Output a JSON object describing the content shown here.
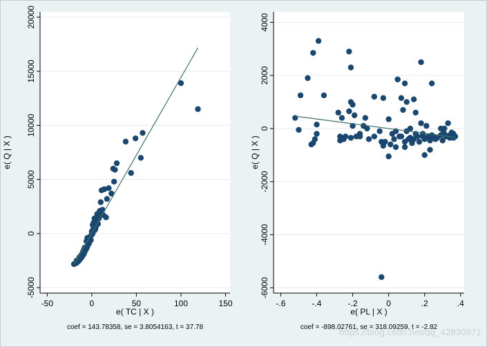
{
  "page": {
    "watermark": "https://blog.csdn.net/qq_42830971"
  },
  "style": {
    "background": "#eaf2f3",
    "plot_background": "#ffffff",
    "point_color": "#1a476f",
    "line_color": "#3d7065",
    "grid_color": "#e6eaec",
    "axis_color": "#000000"
  },
  "chart_data": [
    {
      "type": "scatter",
      "title": "",
      "xlabel": "e( TC | X )",
      "ylabel": "e( Q | X )",
      "xlim": [
        -58,
        155
      ],
      "ylim": [
        -5500,
        20500
      ],
      "xticks": [
        -50,
        0,
        50,
        100,
        150
      ],
      "xtick_labels": [
        "-50",
        "0",
        "50",
        "100",
        "150"
      ],
      "yticks": [
        -5000,
        0,
        5000,
        10000,
        15000,
        20000
      ],
      "ytick_labels": [
        "-5000",
        "0",
        "5000",
        "10000",
        "15000",
        "20000"
      ],
      "grid": true,
      "footnote": "coef = 143.78358, se = 3.8054163, t = 37.78",
      "fit_line": {
        "x": [
          -20,
          119
        ],
        "y": [
          -2820,
          17170
        ]
      },
      "points": [
        [
          119,
          11500
        ],
        [
          100,
          13900
        ],
        [
          57,
          9300
        ],
        [
          55,
          7000
        ],
        [
          49,
          8800
        ],
        [
          44,
          5600
        ],
        [
          38,
          8500
        ],
        [
          28,
          6500
        ],
        [
          26,
          5900
        ],
        [
          24,
          6000
        ],
        [
          25,
          4800
        ],
        [
          22,
          3700
        ],
        [
          19,
          4200
        ],
        [
          17,
          3200
        ],
        [
          14,
          4100
        ],
        [
          11,
          4000
        ],
        [
          10,
          2900
        ],
        [
          9,
          2100
        ],
        [
          12,
          2200
        ],
        [
          16,
          1500
        ],
        [
          7,
          1600
        ],
        [
          5,
          1200
        ],
        [
          4,
          800
        ],
        [
          3,
          1400
        ],
        [
          2,
          500
        ],
        [
          1,
          800
        ],
        [
          0,
          200
        ],
        [
          -1,
          -200
        ],
        [
          -2,
          -500
        ],
        [
          -3,
          -700
        ],
        [
          -4,
          -1000
        ],
        [
          -5,
          -1200
        ],
        [
          -6,
          -1400
        ],
        [
          -7,
          -1500
        ],
        [
          -8,
          -1700
        ],
        [
          -9,
          -1900
        ],
        [
          -10,
          -2000
        ],
        [
          -11,
          -2150
        ],
        [
          -12,
          -2250
        ],
        [
          -13,
          -2350
        ],
        [
          -14,
          -2450
        ],
        [
          -15,
          -2550
        ],
        [
          -16,
          -2620
        ],
        [
          -17,
          -2700
        ],
        [
          -18,
          -2750
        ],
        [
          -19,
          -2790
        ],
        [
          -20,
          -2820
        ],
        [
          -6,
          -700
        ],
        [
          -4,
          -800
        ],
        [
          -2,
          -300
        ],
        [
          0,
          -100
        ],
        [
          3,
          300
        ],
        [
          5,
          700
        ],
        [
          7,
          900
        ],
        [
          8,
          1400
        ],
        [
          -10,
          -1700
        ],
        [
          -12,
          -2000
        ],
        [
          -14,
          -2200
        ],
        [
          -15,
          -2400
        ],
        [
          -17,
          -2500
        ],
        [
          -8,
          -1300
        ],
        [
          -3,
          -900
        ],
        [
          1,
          0
        ],
        [
          4,
          400
        ],
        [
          6,
          1800
        ],
        [
          -5,
          -400
        ],
        [
          -9,
          -1500
        ],
        [
          -11,
          -1900
        ],
        [
          -1,
          -600
        ],
        [
          2,
          1000
        ],
        [
          9,
          1700
        ],
        [
          13,
          1700
        ]
      ]
    },
    {
      "type": "scatter",
      "title": "",
      "xlabel": "e( PL | X )",
      "ylabel": "e( Q | X )",
      "xlim": [
        -0.64,
        0.42
      ],
      "ylim": [
        -6200,
        4400
      ],
      "xticks": [
        -0.6,
        -0.4,
        -0.2,
        0,
        0.2,
        0.4
      ],
      "xtick_labels": [
        "-.6",
        "-.4",
        "-.2",
        "0",
        ".2",
        ".4"
      ],
      "yticks": [
        -6000,
        -4000,
        -2000,
        0,
        2000,
        4000
      ],
      "ytick_labels": [
        "-6000",
        "-4000",
        "-2000",
        "0",
        "2000",
        "4000"
      ],
      "grid": true,
      "footnote": "coef = -898.02761, se = 318.09259, t = -2.82",
      "fit_line": {
        "x": [
          -0.52,
          0.37
        ],
        "y": [
          467,
          -332
        ]
      },
      "points": [
        [
          -0.39,
          3300
        ],
        [
          -0.42,
          2850
        ],
        [
          -0.22,
          2900
        ],
        [
          -0.21,
          2300
        ],
        [
          0.18,
          2500
        ],
        [
          -0.45,
          1900
        ],
        [
          -0.49,
          1250
        ],
        [
          -0.36,
          1250
        ],
        [
          0.05,
          1850
        ],
        [
          0.09,
          1700
        ],
        [
          0.24,
          1700
        ],
        [
          -0.08,
          1200
        ],
        [
          0.07,
          1150
        ],
        [
          0.1,
          1000
        ],
        [
          0.14,
          1100
        ],
        [
          -0.03,
          1150
        ],
        [
          -0.21,
          1000
        ],
        [
          -0.2,
          900
        ],
        [
          -0.22,
          650
        ],
        [
          -0.19,
          500
        ],
        [
          -0.28,
          600
        ],
        [
          -0.26,
          400
        ],
        [
          -0.13,
          400
        ],
        [
          0.0,
          350
        ],
        [
          0.08,
          700
        ],
        [
          0.15,
          600
        ],
        [
          0.18,
          200
        ],
        [
          -0.52,
          400
        ],
        [
          -0.4,
          150
        ],
        [
          -0.2,
          100
        ],
        [
          -0.12,
          0
        ],
        [
          -0.05,
          -100
        ],
        [
          0.02,
          -200
        ],
        [
          0.06,
          -300
        ],
        [
          0.12,
          -350
        ],
        [
          0.19,
          -300
        ],
        [
          0.24,
          -250
        ],
        [
          0.3,
          -200
        ],
        [
          0.33,
          200
        ],
        [
          0.35,
          -150
        ],
        [
          -0.5,
          -50
        ],
        [
          -0.4,
          -200
        ],
        [
          -0.41,
          -400
        ],
        [
          -0.43,
          -600
        ],
        [
          -0.42,
          -550
        ],
        [
          -0.27,
          -300
        ],
        [
          -0.25,
          -400
        ],
        [
          -0.24,
          -300
        ],
        [
          -0.21,
          -350
        ],
        [
          -0.18,
          -300
        ],
        [
          -0.16,
          -300
        ],
        [
          -0.11,
          -400
        ],
        [
          -0.08,
          -300
        ],
        [
          -0.04,
          -500
        ],
        [
          -0.02,
          -500
        ],
        [
          0.01,
          -600
        ],
        [
          0.03,
          -400
        ],
        [
          0.04,
          -700
        ],
        [
          0.07,
          -300
        ],
        [
          0.09,
          -500
        ],
        [
          0.11,
          -400
        ],
        [
          0.13,
          -550
        ],
        [
          0.14,
          -400
        ],
        [
          0.16,
          -300
        ],
        [
          0.17,
          -500
        ],
        [
          0.19,
          -200
        ],
        [
          0.2,
          -400
        ],
        [
          0.22,
          -300
        ],
        [
          0.23,
          -450
        ],
        [
          0.25,
          -300
        ],
        [
          0.26,
          -400
        ],
        [
          0.27,
          -350
        ],
        [
          0.29,
          -250
        ],
        [
          0.3,
          -450
        ],
        [
          0.31,
          0
        ],
        [
          0.32,
          -300
        ],
        [
          0.34,
          -250
        ],
        [
          0.36,
          -350
        ],
        [
          0.37,
          -300
        ],
        [
          0.36,
          -200
        ],
        [
          0.34,
          -350
        ],
        [
          -0.03,
          -650
        ],
        [
          0.0,
          -1050
        ],
        [
          0.09,
          -700
        ],
        [
          0.2,
          -1000
        ],
        [
          0.23,
          -800
        ],
        [
          0.15,
          -200
        ],
        [
          0.12,
          0
        ],
        [
          0.04,
          -100
        ],
        [
          -0.16,
          -200
        ],
        [
          0.29,
          0
        ],
        [
          0.21,
          100
        ],
        [
          0.1,
          -100
        ],
        [
          -0.04,
          -5600
        ],
        [
          -0.27,
          -450
        ],
        [
          -0.14,
          100
        ],
        [
          0.05,
          1850
        ],
        [
          0.31,
          -200
        ]
      ]
    }
  ]
}
